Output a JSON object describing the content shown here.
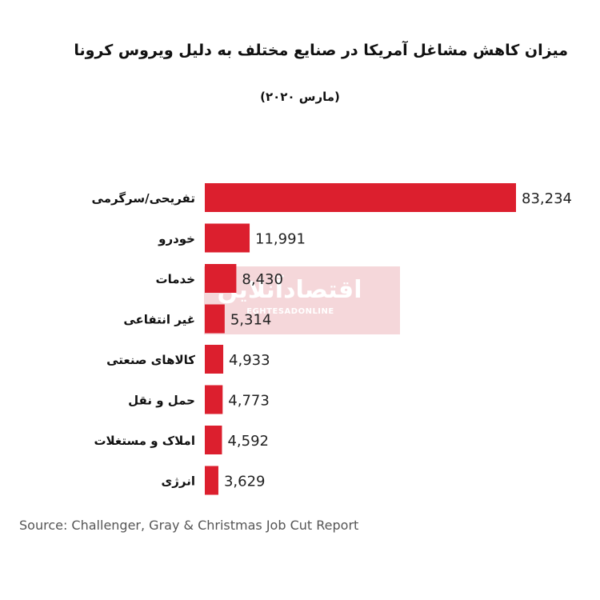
{
  "header": {
    "title": "میزان کاهش مشاغل آمریکا در صنایع مختلف به دلیل ویروس کرونا",
    "subtitle": "(مارس ۲۰۲۰)"
  },
  "watermark": {
    "text": "اقتصادآنلاین",
    "sub": "EGHTESADONLINE"
  },
  "chart_data": {
    "type": "bar",
    "orientation": "horizontal",
    "categories": [
      "تفریحی/سرگرمی",
      "خودرو",
      "خدمات",
      "غیر انتفاعی",
      "کالاهای صنعتی",
      "حمل و نقل",
      "املاک و مستغلات",
      "انرژی"
    ],
    "values": [
      83234,
      11991,
      8430,
      5314,
      4933,
      4773,
      4592,
      3629
    ],
    "value_labels": [
      "83,234",
      "11,991",
      "8,430",
      "5,314",
      "4,933",
      "4,773",
      "4,592",
      "3,629"
    ],
    "xlim": [
      0,
      83234
    ],
    "grid": false,
    "bar_color": "#dc1f2e"
  },
  "footer": {
    "source": "Source: Challenger, Gray & Christmas Job Cut Report"
  }
}
